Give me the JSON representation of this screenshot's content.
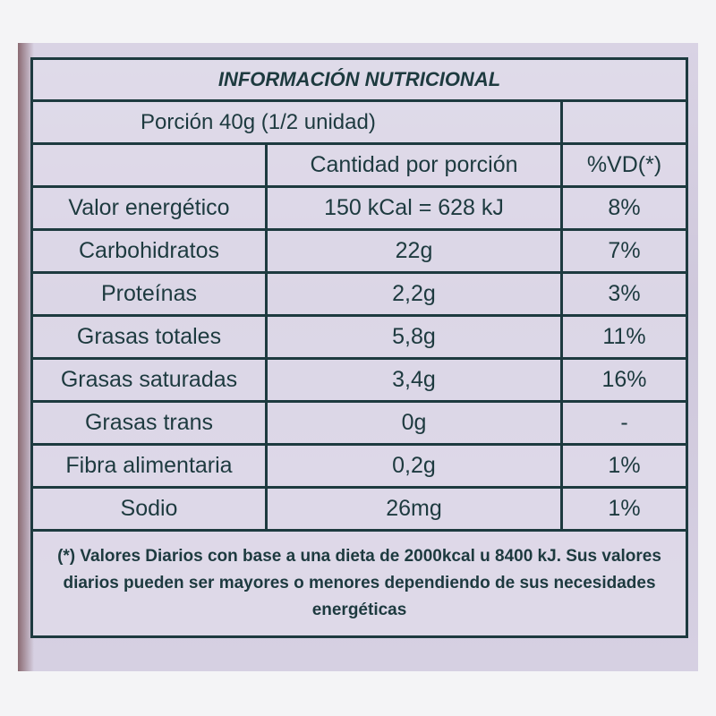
{
  "title": "INFORMACIÓN NUTRICIONAL",
  "portion": "Porción 40g (1/2 unidad)",
  "header": [
    "Cantidad por porción",
    "%VD(*)"
  ],
  "rows": [
    [
      "Valor energético",
      "150 kCal = 628 kJ",
      "8%"
    ],
    [
      "Carbohidratos",
      "22g",
      "7%"
    ],
    [
      "Proteínas",
      "2,2g",
      "3%"
    ],
    [
      "Grasas totales",
      "5,8g",
      "11%"
    ],
    [
      "Grasas saturadas",
      "3,4g",
      "16%"
    ],
    [
      "Grasas trans",
      "0g",
      "-"
    ],
    [
      "Fibra alimentaria",
      "0,2g",
      "1%"
    ],
    [
      "Sodio",
      "26mg",
      "1%"
    ]
  ],
  "footnote": "(*) Valores Diarios con base a una dieta de 2000kcal u 8400 kJ. Sus valores diarios pueden ser mayores o menores dependiendo de sus necesidades energéticas"
}
